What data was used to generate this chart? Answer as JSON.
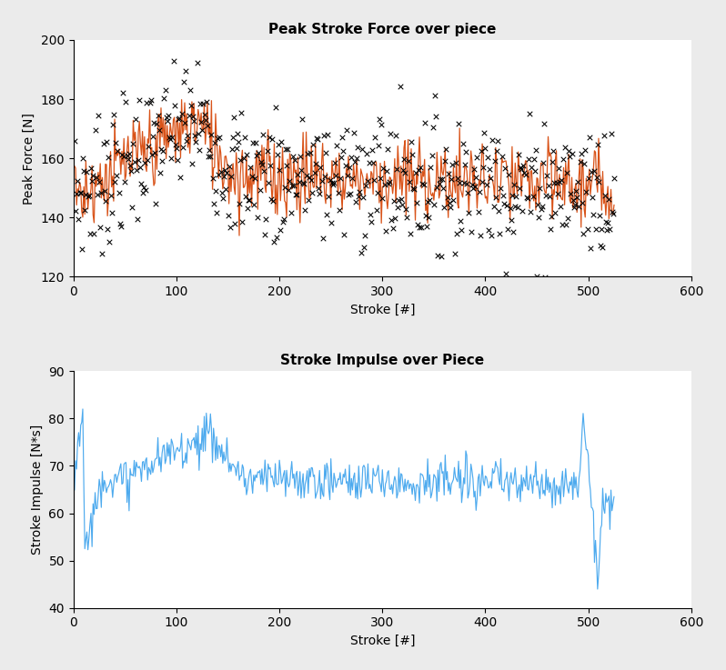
{
  "title1": "Peak Stroke Force over piece",
  "title2": "Stroke Impulse over Piece",
  "xlabel": "Stroke [#]",
  "ylabel1": "Peak Force [N]",
  "ylabel2": "Stroke Impulse [N*s]",
  "xlim": [
    0,
    600
  ],
  "ylim1": [
    120,
    200
  ],
  "ylim2": [
    40,
    90
  ],
  "xticks1": [
    0,
    100,
    200,
    300,
    400,
    500,
    600
  ],
  "xticks2": [
    0,
    100,
    200,
    300,
    400,
    500,
    600
  ],
  "yticks1": [
    120,
    140,
    160,
    180,
    200
  ],
  "yticks2": [
    40,
    50,
    60,
    70,
    80,
    90
  ],
  "n_strokes": 525,
  "scatter_color": "black",
  "line_color": "#D95319",
  "impulse_color": "#4DAAEE",
  "bg_color": "#EBEBEB",
  "axes_bg_color": "white",
  "title_fontsize": 11,
  "label_fontsize": 10,
  "tick_fontsize": 10
}
